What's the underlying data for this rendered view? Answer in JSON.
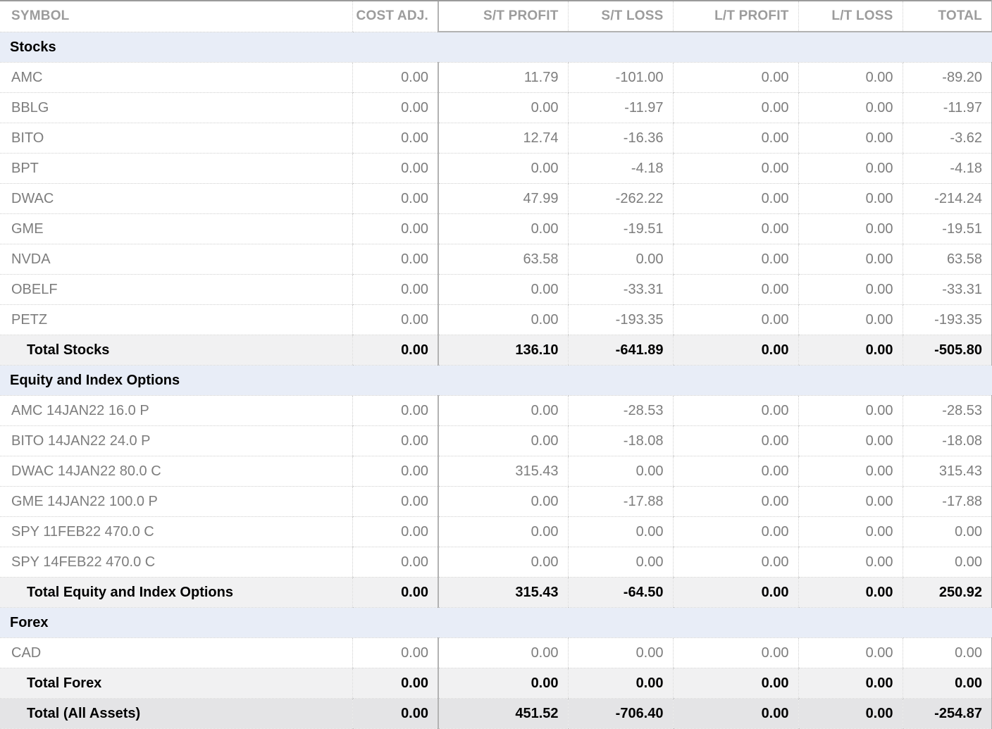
{
  "table": {
    "columns": [
      {
        "key": "symbol",
        "label": "SYMBOL"
      },
      {
        "key": "cost_adj",
        "label": "COST ADJ."
      },
      {
        "key": "st_profit",
        "label": "S/T PROFIT"
      },
      {
        "key": "st_loss",
        "label": "S/T LOSS"
      },
      {
        "key": "lt_profit",
        "label": "L/T PROFIT"
      },
      {
        "key": "lt_loss",
        "label": "L/T LOSS"
      },
      {
        "key": "total",
        "label": "TOTAL"
      }
    ],
    "sections": [
      {
        "name": "Stocks",
        "rows": [
          [
            "AMC",
            "0.00",
            "11.79",
            "-101.00",
            "0.00",
            "0.00",
            "-89.20"
          ],
          [
            "BBLG",
            "0.00",
            "0.00",
            "-11.97",
            "0.00",
            "0.00",
            "-11.97"
          ],
          [
            "BITO",
            "0.00",
            "12.74",
            "-16.36",
            "0.00",
            "0.00",
            "-3.62"
          ],
          [
            "BPT",
            "0.00",
            "0.00",
            "-4.18",
            "0.00",
            "0.00",
            "-4.18"
          ],
          [
            "DWAC",
            "0.00",
            "47.99",
            "-262.22",
            "0.00",
            "0.00",
            "-214.24"
          ],
          [
            "GME",
            "0.00",
            "0.00",
            "-19.51",
            "0.00",
            "0.00",
            "-19.51"
          ],
          [
            "NVDA",
            "0.00",
            "63.58",
            "0.00",
            "0.00",
            "0.00",
            "63.58"
          ],
          [
            "OBELF",
            "0.00",
            "0.00",
            "-33.31",
            "0.00",
            "0.00",
            "-33.31"
          ],
          [
            "PETZ",
            "0.00",
            "0.00",
            "-193.35",
            "0.00",
            "0.00",
            "-193.35"
          ]
        ],
        "total": {
          "label": "Total Stocks",
          "values": [
            "0.00",
            "136.10",
            "-641.89",
            "0.00",
            "0.00",
            "-505.80"
          ]
        }
      },
      {
        "name": "Equity and Index Options",
        "rows": [
          [
            "AMC 14JAN22 16.0 P",
            "0.00",
            "0.00",
            "-28.53",
            "0.00",
            "0.00",
            "-28.53"
          ],
          [
            "BITO 14JAN22 24.0 P",
            "0.00",
            "0.00",
            "-18.08",
            "0.00",
            "0.00",
            "-18.08"
          ],
          [
            "DWAC 14JAN22 80.0 C",
            "0.00",
            "315.43",
            "0.00",
            "0.00",
            "0.00",
            "315.43"
          ],
          [
            "GME 14JAN22 100.0 P",
            "0.00",
            "0.00",
            "-17.88",
            "0.00",
            "0.00",
            "-17.88"
          ],
          [
            "SPY 11FEB22 470.0 C",
            "0.00",
            "0.00",
            "0.00",
            "0.00",
            "0.00",
            "0.00"
          ],
          [
            "SPY 14FEB22 470.0 C",
            "0.00",
            "0.00",
            "0.00",
            "0.00",
            "0.00",
            "0.00"
          ]
        ],
        "total": {
          "label": "Total Equity and Index Options",
          "values": [
            "0.00",
            "315.43",
            "-64.50",
            "0.00",
            "0.00",
            "250.92"
          ]
        }
      },
      {
        "name": "Forex",
        "rows": [
          [
            "CAD",
            "0.00",
            "0.00",
            "0.00",
            "0.00",
            "0.00",
            "0.00"
          ]
        ],
        "total": {
          "label": "Total Forex",
          "values": [
            "0.00",
            "0.00",
            "0.00",
            "0.00",
            "0.00",
            "0.00"
          ]
        }
      }
    ],
    "grand_total": {
      "label": "Total (All Assets)",
      "values": [
        "0.00",
        "451.52",
        "-706.40",
        "0.00",
        "0.00",
        "-254.87"
      ]
    }
  },
  "colors": {
    "section_header_bg": "#e8edf7",
    "section_total_bg": "#f1f1f2",
    "grand_total_bg": "#e4e4e6",
    "data_text": "#7d7d7d",
    "column_header_text": "#9c9c9c",
    "bold_text": "#000000",
    "pane_border": "#b2b2b2",
    "dotted_border": "#cfcfcf",
    "top_border": "#9a9a9a"
  }
}
